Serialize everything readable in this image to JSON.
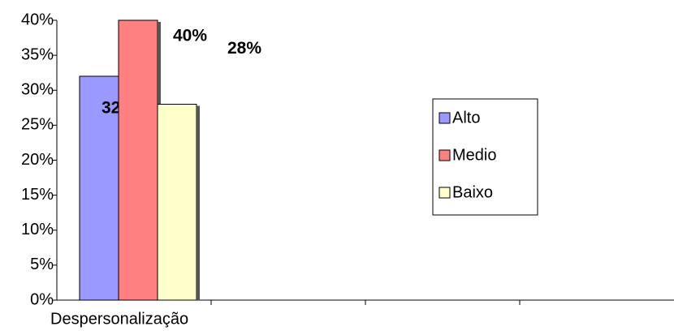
{
  "chart_data": {
    "type": "bar",
    "categories": [
      "Despersonalização",
      null,
      null,
      null
    ],
    "series": [
      {
        "name": "Alto",
        "color": "#9999ff",
        "values": [
          32,
          null,
          null,
          null
        ],
        "value_labels": [
          "32%",
          null,
          null,
          null
        ]
      },
      {
        "name": "Medio",
        "color": "#ff8080",
        "values": [
          40,
          null,
          null,
          null
        ],
        "value_labels": [
          "40%",
          null,
          null,
          null
        ]
      },
      {
        "name": "Baixo",
        "color": "#ffffcc",
        "values": [
          28,
          null,
          null,
          null
        ],
        "value_labels": [
          "28%",
          null,
          null,
          null
        ]
      }
    ],
    "ylim": [
      0,
      40
    ],
    "yticks": [
      {
        "value": 0,
        "label": "0%"
      },
      {
        "value": 5,
        "label": "5%"
      },
      {
        "value": 10,
        "label": "10%"
      },
      {
        "value": 15,
        "label": "15%"
      },
      {
        "value": 20,
        "label": "20%"
      },
      {
        "value": 25,
        "label": "25%"
      },
      {
        "value": 30,
        "label": "30%"
      },
      {
        "value": 35,
        "label": "35%"
      },
      {
        "value": 40,
        "label": "40%"
      }
    ],
    "grid": false,
    "legend": "right"
  }
}
